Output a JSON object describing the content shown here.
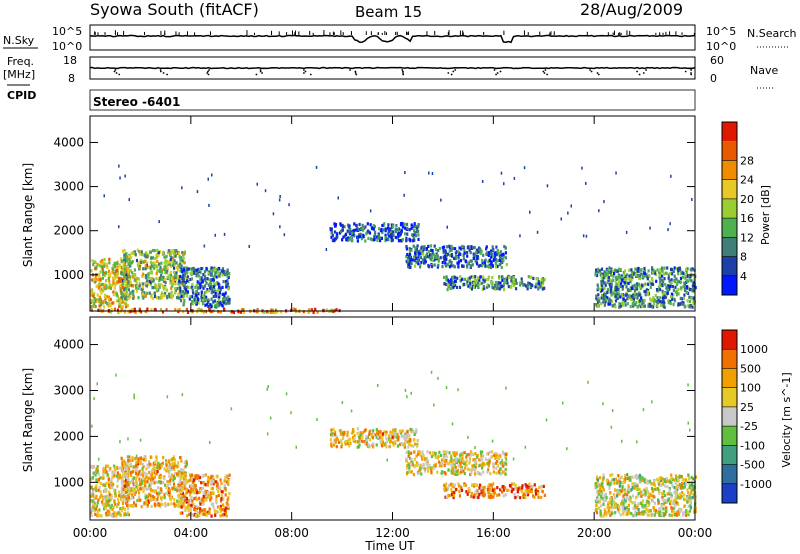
{
  "header": {
    "station": "Syowa South (fitACF)",
    "beam": "Beam 15",
    "date": "28/Aug/2009"
  },
  "labels": {
    "n_sky": "N.Sky",
    "n_search": "N.Search",
    "freq": "Freq.",
    "freq_unit": "[MHz]",
    "nave": "Nave",
    "cpid": "CPID",
    "cpid_value": "Stereo -6401",
    "xlabel": "Time UT"
  },
  "noise_axis": {
    "left_ticks": [
      "10^5",
      "10^0"
    ],
    "right_ticks": [
      "10^5",
      "10^0"
    ]
  },
  "freq_axis": {
    "left_ticks": [
      "18",
      "8"
    ],
    "right_ticks": [
      "60",
      "0"
    ]
  },
  "chart_data": [
    {
      "type": "heatmap",
      "title": "",
      "xlabel": "Time UT",
      "ylabel": "Slant Range [km]",
      "x_ticks": [
        "00:00",
        "04:00",
        "08:00",
        "12:00",
        "16:00",
        "20:00",
        "00:00"
      ],
      "x_range_hours": [
        0,
        24
      ],
      "y_ticks": [
        1000,
        2000,
        3000,
        4000
      ],
      "ylim": [
        180,
        4600
      ],
      "colorbar": {
        "label": "Power [dB]",
        "ticks": [
          "4",
          "8",
          "12",
          "16",
          "20",
          "24",
          "28"
        ],
        "colors": [
          "#0018ff",
          "#1c3fa8",
          "#3f7f78",
          "#4fb04f",
          "#9acd32",
          "#e6c829",
          "#f08c00",
          "#e85a00",
          "#e01800"
        ]
      },
      "echo_regions": [
        {
          "t0": 0.0,
          "t1": 1.5,
          "r0": 300,
          "r1": 1400,
          "level": 0.6
        },
        {
          "t0": 1.2,
          "t1": 3.8,
          "r0": 500,
          "r1": 1600,
          "level": 0.45
        },
        {
          "t0": 3.5,
          "t1": 5.5,
          "r0": 300,
          "r1": 1200,
          "level": 0.25
        },
        {
          "t0": 0.0,
          "t1": 10.0,
          "r0": 180,
          "r1": 260,
          "level": 0.75
        },
        {
          "t0": 9.5,
          "t1": 13.0,
          "r0": 1800,
          "r1": 2200,
          "level": 0.15
        },
        {
          "t0": 12.5,
          "t1": 16.5,
          "r0": 1200,
          "r1": 1700,
          "level": 0.2
        },
        {
          "t0": 14.0,
          "t1": 18.0,
          "r0": 700,
          "r1": 1000,
          "level": 0.3
        },
        {
          "t0": 20.0,
          "t1": 24.0,
          "r0": 300,
          "r1": 1200,
          "level": 0.3
        }
      ]
    },
    {
      "type": "heatmap",
      "title": "",
      "xlabel": "Time UT",
      "ylabel": "Slant Range [km]",
      "x_ticks": [
        "00:00",
        "04:00",
        "08:00",
        "12:00",
        "16:00",
        "20:00",
        "00:00"
      ],
      "x_range_hours": [
        0,
        24
      ],
      "y_ticks": [
        1000,
        2000,
        3000,
        4000
      ],
      "ylim": [
        180,
        4600
      ],
      "colorbar": {
        "label": "Velocity [m s^-1]",
        "ticks": [
          "1000",
          "500",
          "100",
          "25",
          "-25",
          "-100",
          "-500",
          "-1000"
        ],
        "colors": [
          "#1c3fc8",
          "#2f6fa0",
          "#3f9f7f",
          "#5fc040",
          "#c8c8c8",
          "#e6c829",
          "#f0a000",
          "#f07000",
          "#e01800"
        ]
      },
      "echo_regions": [
        {
          "t0": 0.0,
          "t1": 1.5,
          "r0": 300,
          "r1": 1400,
          "level": 0.6
        },
        {
          "t0": 1.2,
          "t1": 3.8,
          "r0": 500,
          "r1": 1600,
          "level": 0.65
        },
        {
          "t0": 3.5,
          "t1": 5.5,
          "r0": 300,
          "r1": 1200,
          "level": 0.7
        },
        {
          "t0": 9.5,
          "t1": 13.0,
          "r0": 1800,
          "r1": 2200,
          "level": 0.65
        },
        {
          "t0": 12.5,
          "t1": 16.5,
          "r0": 1200,
          "r1": 1700,
          "level": 0.6
        },
        {
          "t0": 14.0,
          "t1": 18.0,
          "r0": 700,
          "r1": 1000,
          "level": 0.75
        },
        {
          "t0": 20.0,
          "t1": 24.0,
          "r0": 300,
          "r1": 1200,
          "level": 0.55
        }
      ]
    }
  ]
}
